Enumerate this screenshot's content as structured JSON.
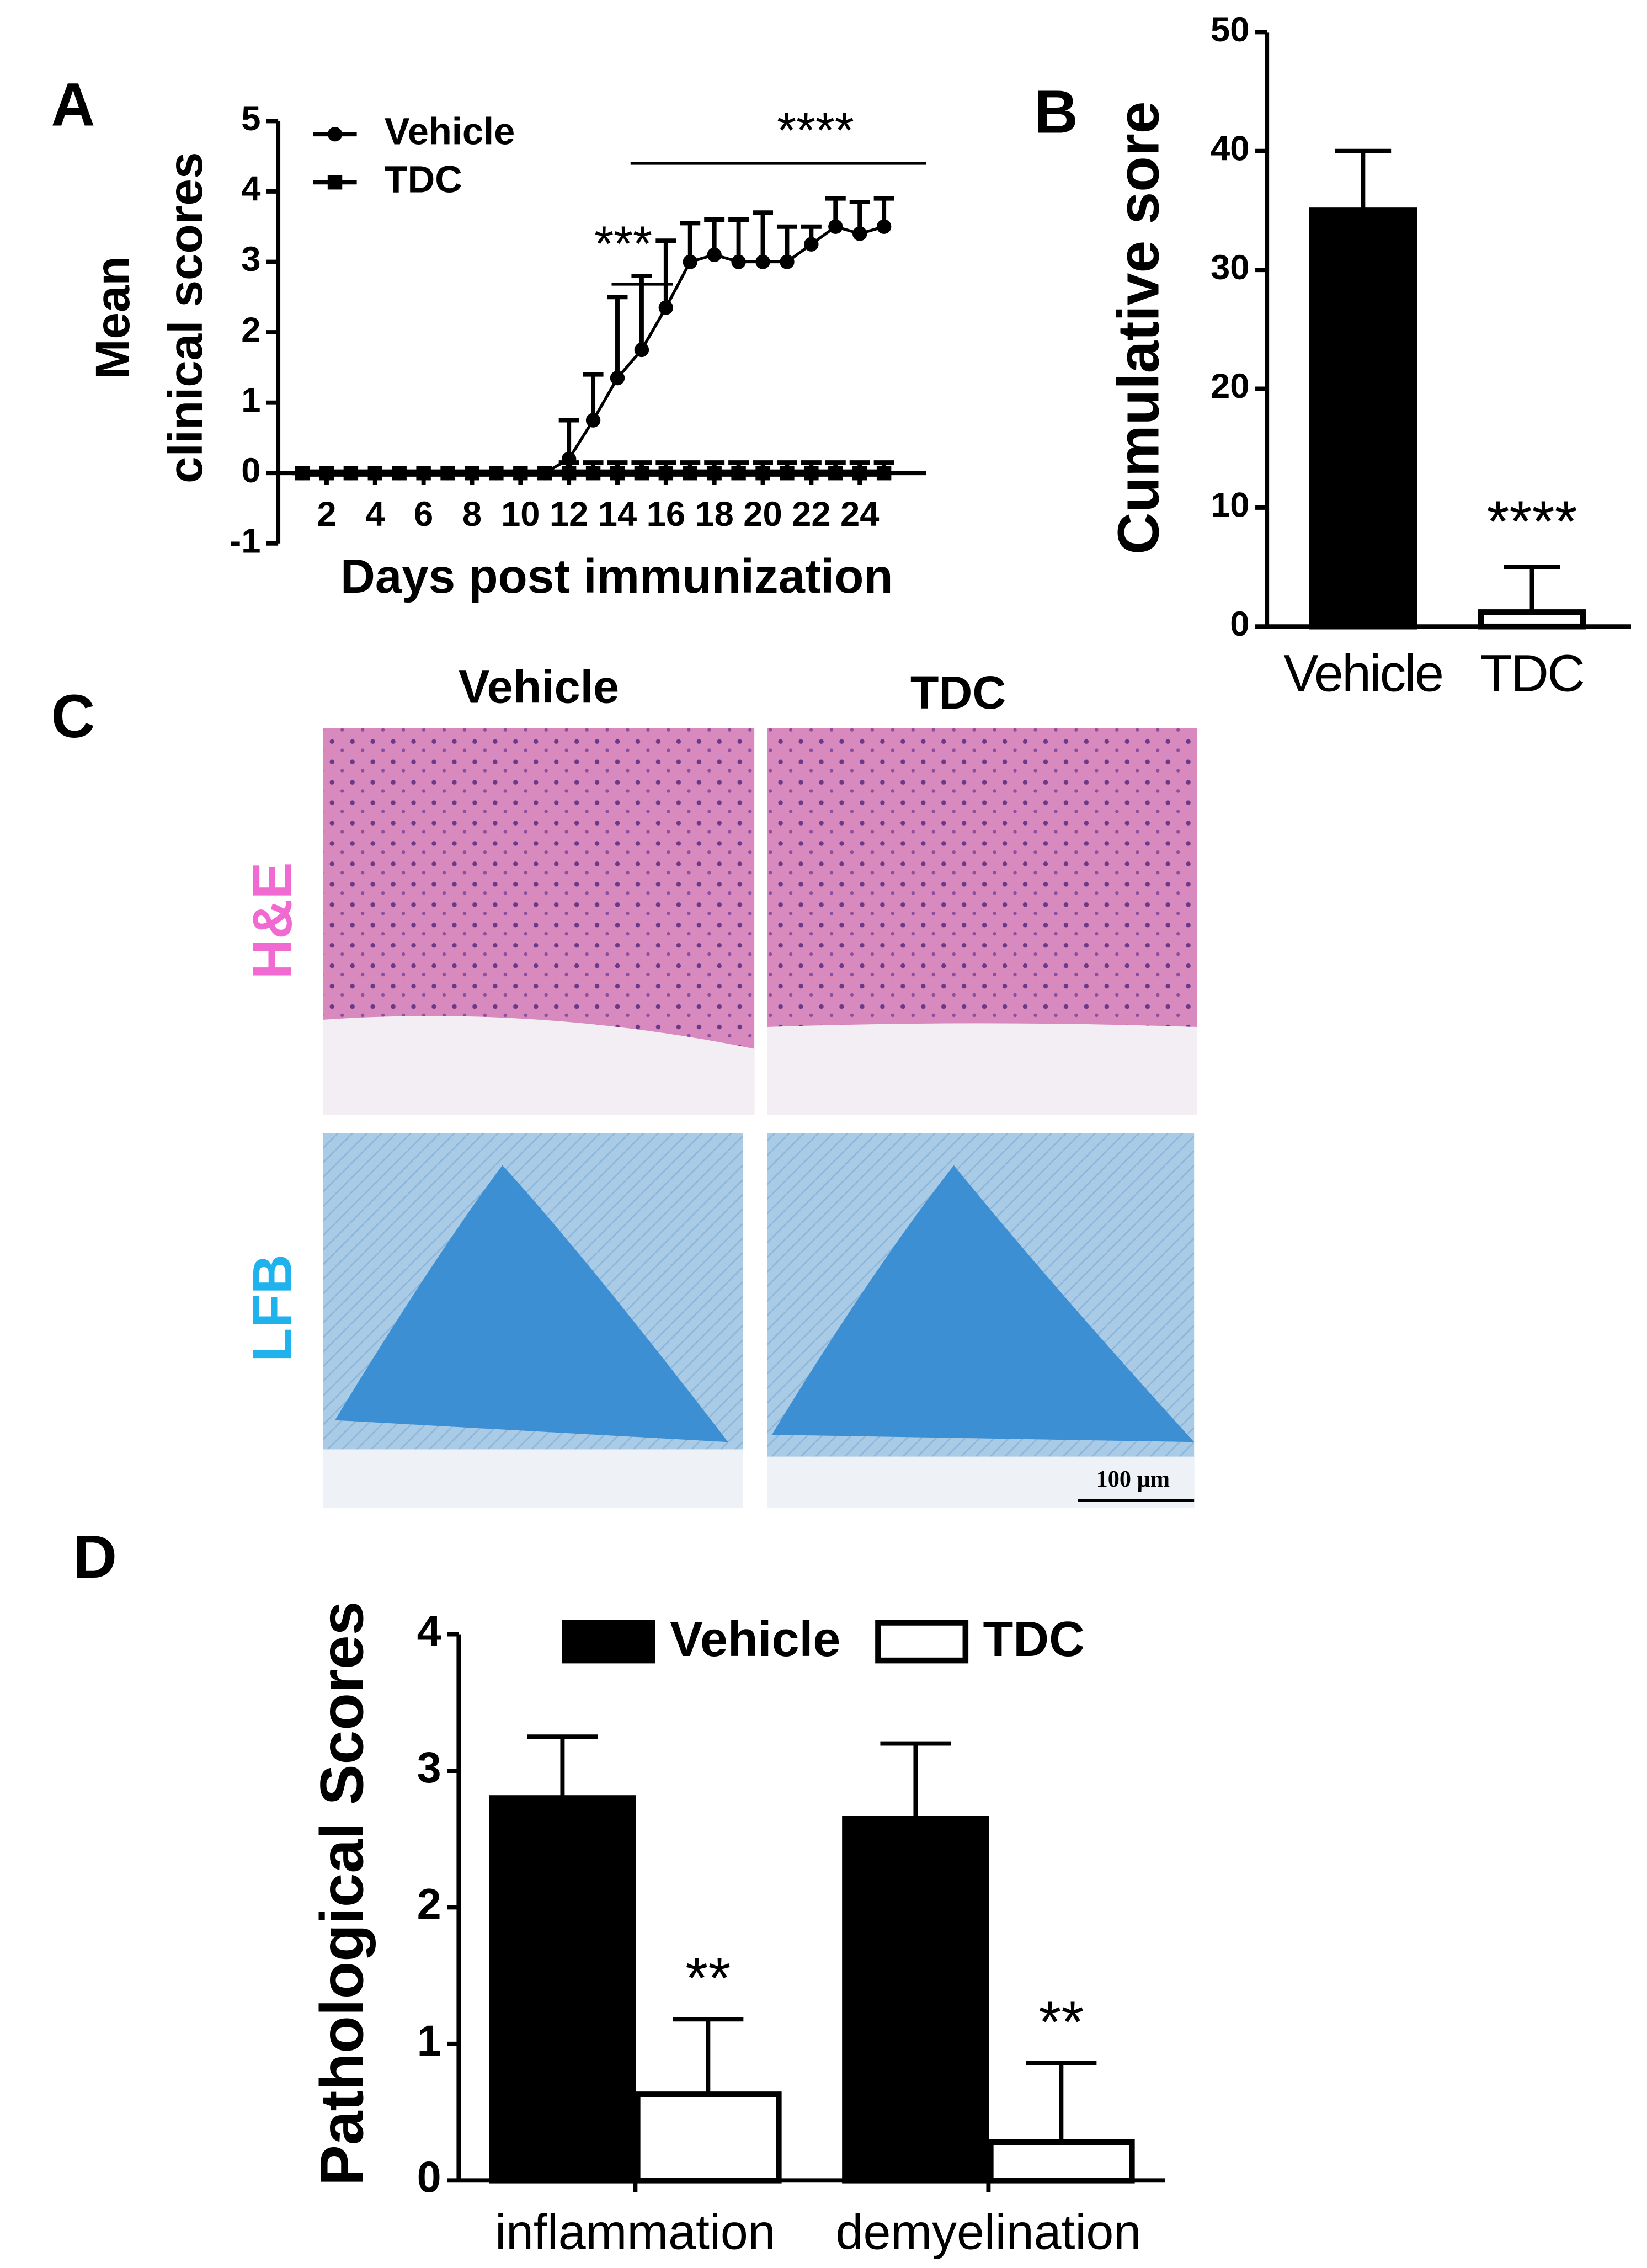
{
  "chart_data": [
    {
      "panel": "A",
      "type": "line",
      "xlabel": "Days post immunization",
      "ylabel": [
        "Mean",
        "clinical scores"
      ],
      "x": [
        1,
        2,
        3,
        4,
        5,
        6,
        7,
        8,
        9,
        10,
        11,
        12,
        13,
        14,
        15,
        16,
        17,
        18,
        19,
        20,
        21,
        22,
        23,
        24,
        25
      ],
      "xlim": [
        0,
        26.5
      ],
      "xticks": [
        2,
        4,
        6,
        8,
        10,
        12,
        14,
        16,
        18,
        20,
        22,
        24
      ],
      "ylim": [
        -1,
        5
      ],
      "yticks": [
        -1,
        0,
        1,
        2,
        3,
        4,
        5
      ],
      "legend": "upper left",
      "series": [
        {
          "name": "Vehicle",
          "color": "#000000",
          "marker": "circle",
          "values": [
            0,
            0,
            0,
            0,
            0,
            0,
            0,
            0,
            0,
            0,
            0,
            0.2,
            0.75,
            1.35,
            1.75,
            2.35,
            3.0,
            3.1,
            3.0,
            3.0,
            3.0,
            3.25,
            3.5,
            3.4,
            3.5
          ],
          "errors": [
            0,
            0,
            0,
            0,
            0,
            0,
            0,
            0,
            0,
            0,
            0,
            0.55,
            0.65,
            1.15,
            1.05,
            0.95,
            0.55,
            0.5,
            0.6,
            0.7,
            0.5,
            0.25,
            0.4,
            0.45,
            0.4
          ]
        },
        {
          "name": "TDC",
          "color": "#000000",
          "marker": "square",
          "values": [
            0,
            0,
            0,
            0,
            0,
            0,
            0,
            0,
            0,
            0,
            0,
            0,
            0,
            0,
            0,
            0,
            0,
            0,
            0,
            0,
            0,
            0,
            0,
            0,
            0
          ],
          "errors": [
            0,
            0,
            0,
            0,
            0,
            0,
            0,
            0,
            0,
            0,
            0,
            0.15,
            0.15,
            0.15,
            0.15,
            0.15,
            0.15,
            0.15,
            0.15,
            0.15,
            0.15,
            0.15,
            0.15,
            0.15,
            0.15
          ]
        }
      ],
      "annotations": [
        "***",
        "****"
      ]
    },
    {
      "panel": "B",
      "type": "bar",
      "ylabel": "Cumulative sore",
      "categories": [
        "Vehicle",
        "TDC"
      ],
      "values": [
        35,
        1.2
      ],
      "errors": [
        5,
        3.8
      ],
      "colors": [
        "#000000",
        "#ffffff"
      ],
      "ylim": [
        0,
        50
      ],
      "yticks": [
        0,
        10,
        20,
        30,
        40,
        50
      ],
      "annotations": [
        "****"
      ]
    },
    {
      "panel": "D",
      "type": "grouped-bar",
      "ylabel": "Pathological Scores",
      "categories": [
        "inflammation",
        "demyelination"
      ],
      "ylim": [
        0,
        4
      ],
      "yticks": [
        0,
        1,
        2,
        3,
        4
      ],
      "legend": "top",
      "series": [
        {
          "name": "Vehicle",
          "color": "#000000",
          "values": [
            2.8,
            2.65
          ],
          "errors": [
            0.45,
            0.55
          ]
        },
        {
          "name": "TDC",
          "color": "#ffffff",
          "values": [
            0.63,
            0.28
          ],
          "errors": [
            0.55,
            0.58
          ]
        }
      ],
      "annotations": [
        "**",
        "**"
      ]
    }
  ],
  "images": {
    "panel": "C",
    "columns": [
      "Vehicle",
      "TDC"
    ],
    "rows": [
      "H&E",
      "LFB"
    ],
    "row_colors": [
      "#f06ad2",
      "#1fb2ec"
    ],
    "scale_bar": "100 µm"
  }
}
